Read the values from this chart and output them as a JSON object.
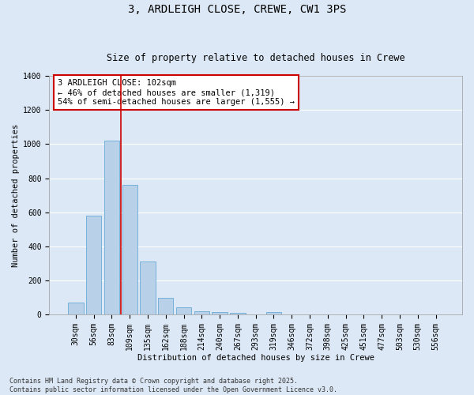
{
  "title": "3, ARDLEIGH CLOSE, CREWE, CW1 3PS",
  "subtitle": "Size of property relative to detached houses in Crewe",
  "xlabel": "Distribution of detached houses by size in Crewe",
  "ylabel": "Number of detached properties",
  "categories": [
    "30sqm",
    "56sqm",
    "83sqm",
    "109sqm",
    "135sqm",
    "162sqm",
    "188sqm",
    "214sqm",
    "240sqm",
    "267sqm",
    "293sqm",
    "319sqm",
    "346sqm",
    "372sqm",
    "398sqm",
    "425sqm",
    "451sqm",
    "477sqm",
    "503sqm",
    "530sqm",
    "556sqm"
  ],
  "values": [
    70,
    580,
    1020,
    760,
    310,
    100,
    45,
    22,
    15,
    10,
    0,
    15,
    0,
    0,
    0,
    0,
    0,
    0,
    0,
    0,
    0
  ],
  "bar_color": "#b8d0e8",
  "bar_edge_color": "#6aaad4",
  "background_color": "#dce8f5",
  "grid_color": "#ffffff",
  "vline_color": "#cc0000",
  "vline_x_index": 2.5,
  "annotation_text": "3 ARDLEIGH CLOSE: 102sqm\n← 46% of detached houses are smaller (1,319)\n54% of semi-detached houses are larger (1,555) →",
  "annotation_box_color": "#ffffff",
  "annotation_box_edge": "#cc0000",
  "ylim": [
    0,
    1400
  ],
  "yticks": [
    0,
    200,
    400,
    600,
    800,
    1000,
    1200,
    1400
  ],
  "footer": "Contains HM Land Registry data © Crown copyright and database right 2025.\nContains public sector information licensed under the Open Government Licence v3.0.",
  "title_fontsize": 10,
  "subtitle_fontsize": 8.5,
  "axis_label_fontsize": 7.5,
  "tick_fontsize": 7,
  "annotation_fontsize": 7.5,
  "footer_fontsize": 6
}
